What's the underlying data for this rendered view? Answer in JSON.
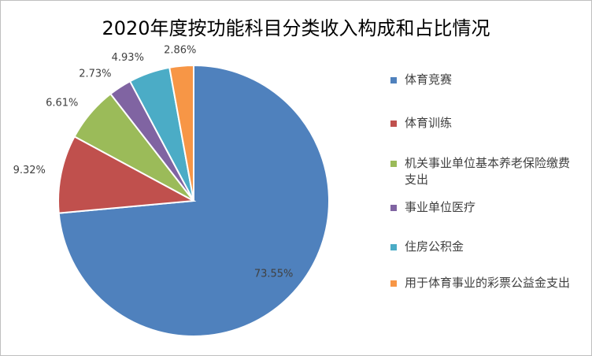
{
  "chart_data": {
    "type": "pie",
    "title": "2020年度按功能科目分类收入构成和占比情况",
    "categories": [
      "体育竞赛",
      "体育训练",
      "机关事业单位基本养老保险缴费支出",
      "事业单位医疗",
      "住房公积金",
      "用于体育事业的彩票公益金支出"
    ],
    "values": [
      73.55,
      9.32,
      6.61,
      2.73,
      4.93,
      2.86
    ],
    "value_labels": [
      "73.55%",
      "9.32%",
      "6.61%",
      "2.73%",
      "4.93%",
      "2.86%"
    ],
    "colors": [
      "#4f81bd",
      "#c0504d",
      "#9bbb59",
      "#8064a2",
      "#4bacc6",
      "#f79646"
    ],
    "legend": "right"
  }
}
